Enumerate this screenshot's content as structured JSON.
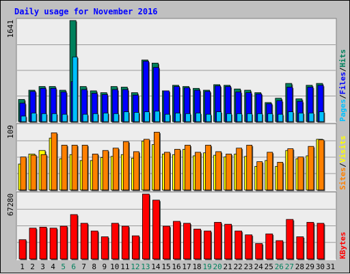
{
  "title": "Daily usage for November 2016",
  "colors": {
    "background": "#c0c0c0",
    "plot_bg": "#ededed",
    "title": "#0000ff",
    "hits": "#00805c",
    "files": "#0000ff",
    "pages": "#00c0ff",
    "visits": "#ffff00",
    "sites": "#ff8000",
    "kbytes": "#ff0000",
    "weekend_label": "#00805c",
    "day_label": "#000000"
  },
  "chart_data": [
    {
      "type": "bar",
      "panel": "hits-files-pages",
      "ymax_label": "1641",
      "ylim": [
        0,
        1641
      ],
      "legend": [
        {
          "label": "Pages",
          "color_key": "pages"
        },
        {
          "label": "Files",
          "color_key": "files"
        },
        {
          "label": "Hits",
          "color_key": "hits"
        }
      ],
      "categories": [
        "1",
        "2",
        "3",
        "4",
        "5",
        "6",
        "7",
        "8",
        "9",
        "10",
        "11",
        "12",
        "13",
        "14",
        "15",
        "16",
        "17",
        "18",
        "19",
        "20",
        "21",
        "22",
        "23",
        "24",
        "25",
        "26",
        "27",
        "28",
        "29",
        "30",
        "31"
      ],
      "series": [
        {
          "name": "Hits",
          "color_key": "hits",
          "values": [
            360,
            510,
            570,
            570,
            510,
            1641,
            570,
            500,
            470,
            570,
            560,
            470,
            1000,
            950,
            500,
            590,
            570,
            540,
            510,
            600,
            590,
            530,
            510,
            470,
            310,
            380,
            620,
            370,
            590,
            620,
            0
          ]
        },
        {
          "name": "Files",
          "color_key": "files",
          "values": [
            300,
            490,
            540,
            540,
            480,
            650,
            520,
            460,
            440,
            520,
            520,
            430,
            980,
            880,
            500,
            570,
            550,
            510,
            490,
            580,
            570,
            480,
            470,
            450,
            290,
            340,
            560,
            330,
            560,
            590,
            0
          ]
        },
        {
          "name": "Pages",
          "color_key": "pages",
          "values": [
            90,
            140,
            130,
            130,
            120,
            1050,
            120,
            130,
            140,
            130,
            160,
            150,
            160,
            170,
            120,
            140,
            130,
            140,
            120,
            160,
            130,
            130,
            130,
            130,
            130,
            120,
            160,
            140,
            140,
            160,
            0
          ]
        }
      ]
    },
    {
      "type": "bar",
      "panel": "visits-sites",
      "ymax_label": "109",
      "ylim": [
        0,
        109
      ],
      "legend": [
        {
          "label": "Sites",
          "color_key": "sites"
        },
        {
          "label": "Visits",
          "color_key": "visits"
        }
      ],
      "categories": [
        "1",
        "2",
        "3",
        "4",
        "5",
        "6",
        "7",
        "8",
        "9",
        "10",
        "11",
        "12",
        "13",
        "14",
        "15",
        "16",
        "17",
        "18",
        "19",
        "20",
        "21",
        "22",
        "23",
        "24",
        "25",
        "26",
        "27",
        "28",
        "29",
        "30",
        "31"
      ],
      "series": [
        {
          "name": "Visits",
          "color_key": "visits",
          "values": [
            44,
            61,
            67,
            88,
            53,
            60,
            50,
            50,
            55,
            57,
            60,
            54,
            83,
            77,
            61,
            60,
            69,
            58,
            63,
            59,
            56,
            61,
            57,
            40,
            50,
            40,
            67,
            53,
            58,
            86,
            0
          ]
        },
        {
          "name": "Sites",
          "color_key": "sites",
          "values": [
            56,
            59,
            60,
            97,
            76,
            76,
            76,
            61,
            67,
            71,
            82,
            65,
            86,
            98,
            64,
            69,
            76,
            64,
            76,
            65,
            61,
            71,
            76,
            48,
            64,
            47,
            70,
            56,
            74,
            85,
            0
          ]
        }
      ]
    },
    {
      "type": "bar",
      "panel": "kbytes",
      "ymax_label": "67280",
      "ylim": [
        0,
        67280
      ],
      "legend": [
        {
          "label": "KBytes",
          "color_key": "kbytes"
        }
      ],
      "categories": [
        "1",
        "2",
        "3",
        "4",
        "5",
        "6",
        "7",
        "8",
        "9",
        "10",
        "11",
        "12",
        "13",
        "14",
        "15",
        "16",
        "17",
        "18",
        "19",
        "20",
        "21",
        "22",
        "23",
        "24",
        "25",
        "26",
        "27",
        "28",
        "29",
        "30",
        "31"
      ],
      "series": [
        {
          "name": "KBytes",
          "color_key": "kbytes",
          "values": [
            20000,
            32000,
            33000,
            32000,
            34000,
            46000,
            37000,
            29000,
            23000,
            37000,
            34000,
            24000,
            67280,
            61000,
            34000,
            39000,
            37000,
            31000,
            29000,
            38000,
            36000,
            29000,
            25000,
            16000,
            26000,
            19000,
            41000,
            23000,
            38000,
            37000,
            0
          ]
        }
      ]
    }
  ],
  "x_axis": {
    "labels": [
      "1",
      "2",
      "3",
      "4",
      "5",
      "6",
      "7",
      "8",
      "9",
      "10",
      "11",
      "12",
      "13",
      "14",
      "15",
      "16",
      "17",
      "18",
      "19",
      "20",
      "21",
      "22",
      "23",
      "24",
      "25",
      "26",
      "27",
      "28",
      "29",
      "30",
      "31"
    ],
    "weekend_days": [
      "5",
      "6",
      "12",
      "13",
      "19",
      "20",
      "26",
      "27"
    ]
  }
}
